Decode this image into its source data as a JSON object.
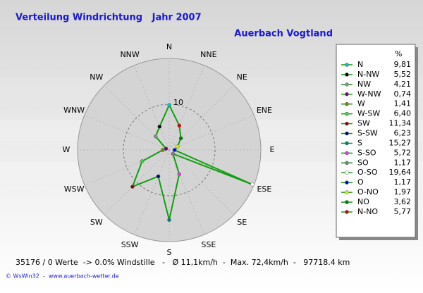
{
  "chart_data": {
    "type": "radar",
    "title": "Verteilung Windrichtung   Jahr 2007",
    "subtitle": "Auerbach Vogtland",
    "categories": [
      "N",
      "NNW",
      "NW",
      "WNW",
      "W",
      "WSW",
      "SW",
      "SSW",
      "S",
      "SSE",
      "SE",
      "ESE",
      "E",
      "ENE",
      "NE",
      "NNE"
    ],
    "legend_title": "%",
    "legend_labels": [
      "N",
      "N-NW",
      "NW",
      "W-NW",
      "W",
      "W-SW",
      "SW",
      "S-SW",
      "S",
      "S-SO",
      "SO",
      "O-SO",
      "O",
      "O-NO",
      "NO",
      "N-NO"
    ],
    "values": [
      9.81,
      5.52,
      4.21,
      0.74,
      1.41,
      6.4,
      11.34,
      6.23,
      15.27,
      5.72,
      1.17,
      19.64,
      1.17,
      1.97,
      3.62,
      5.77
    ],
    "value_labels": [
      "9,81",
      "5,52",
      "4,21",
      "0,74",
      "1,41",
      "6,40",
      "11,34",
      "6,23",
      "15,27",
      "5,72",
      "1,17",
      "19,64",
      "1,17",
      "1,97",
      "3,62",
      "5,77"
    ],
    "colors": [
      "#00c8c8",
      "#000000",
      "#909090",
      "#800080",
      "#808000",
      "#40d040",
      "#a00000",
      "#000080",
      "#008080",
      "#e040e0",
      "#808080",
      "#ffffff",
      "#0000ff",
      "#e8e800",
      "#008000",
      "#e00000"
    ],
    "line_color": "#10a010",
    "rlim": [
      0,
      20
    ],
    "rticks": [
      10
    ],
    "footer": "35176 / 0 Werte  -> 0.0% Windstille   -   Ø 11,1km/h  -  Max. 72,4km/h  -   97718.4 km",
    "credit": "© WsWin32  -  www.auerbach-wetter.de"
  }
}
